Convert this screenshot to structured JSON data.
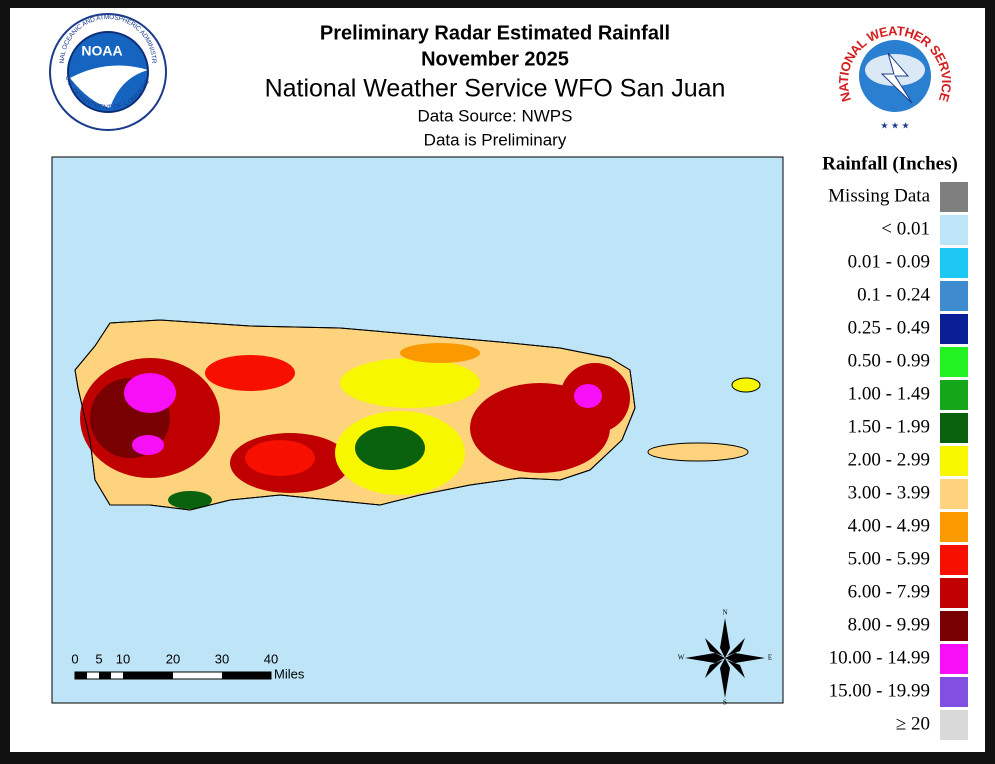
{
  "header": {
    "title": "Preliminary Radar Estimated Rainfall",
    "period": "November 2025",
    "office": "National Weather Service WFO San Juan",
    "source": "Data Source: NWPS",
    "note": "Data is Preliminary"
  },
  "logos": {
    "noaa": {
      "name": "NOAA",
      "ring_top": "NATIONAL OCEANIC AND ATMOSPHERIC ADMINISTRATION",
      "ring_bottom": "U.S. DEPARTMENT OF COMMERCE"
    },
    "nws": {
      "ring": "NATIONAL WEATHER SERVICE"
    }
  },
  "legend": {
    "title": "Rainfall (Inches)",
    "items": [
      {
        "label": "Missing Data",
        "color": "#7f7f7f"
      },
      {
        "label": "< 0.01",
        "color": "#bde4f7"
      },
      {
        "label": "0.01 - 0.09",
        "color": "#1ec8f5"
      },
      {
        "label": "0.1 - 0.24",
        "color": "#3e8ccf"
      },
      {
        "label": "0.25 - 0.49",
        "color": "#0a1f96"
      },
      {
        "label": "0.50 - 0.99",
        "color": "#22f222"
      },
      {
        "label": "1.00 - 1.49",
        "color": "#16a61a"
      },
      {
        "label": "1.50 - 1.99",
        "color": "#0a620e"
      },
      {
        "label": "2.00 - 2.99",
        "color": "#f7f700"
      },
      {
        "label": "3.00 - 3.99",
        "color": "#fdd47d"
      },
      {
        "label": "4.00 - 4.99",
        "color": "#fb9a00"
      },
      {
        "label": "5.00 - 5.99",
        "color": "#f70f00"
      },
      {
        "label": "6.00 - 7.99",
        "color": "#c00000"
      },
      {
        "label": "8.00 - 9.99",
        "color": "#780000"
      },
      {
        "label": "10.00 - 14.99",
        "color": "#f70ff7"
      },
      {
        "label": "15.00 - 19.99",
        "color": "#8250e0"
      },
      {
        "label": "≥ 20",
        "color": "#d9d9d9"
      }
    ]
  },
  "scale_bar": {
    "ticks": [
      "0",
      "5",
      "10",
      "20",
      "30",
      "40"
    ],
    "unit": "Miles"
  },
  "compass": {
    "north": "N",
    "east": "E",
    "south": "S",
    "west": "W"
  }
}
